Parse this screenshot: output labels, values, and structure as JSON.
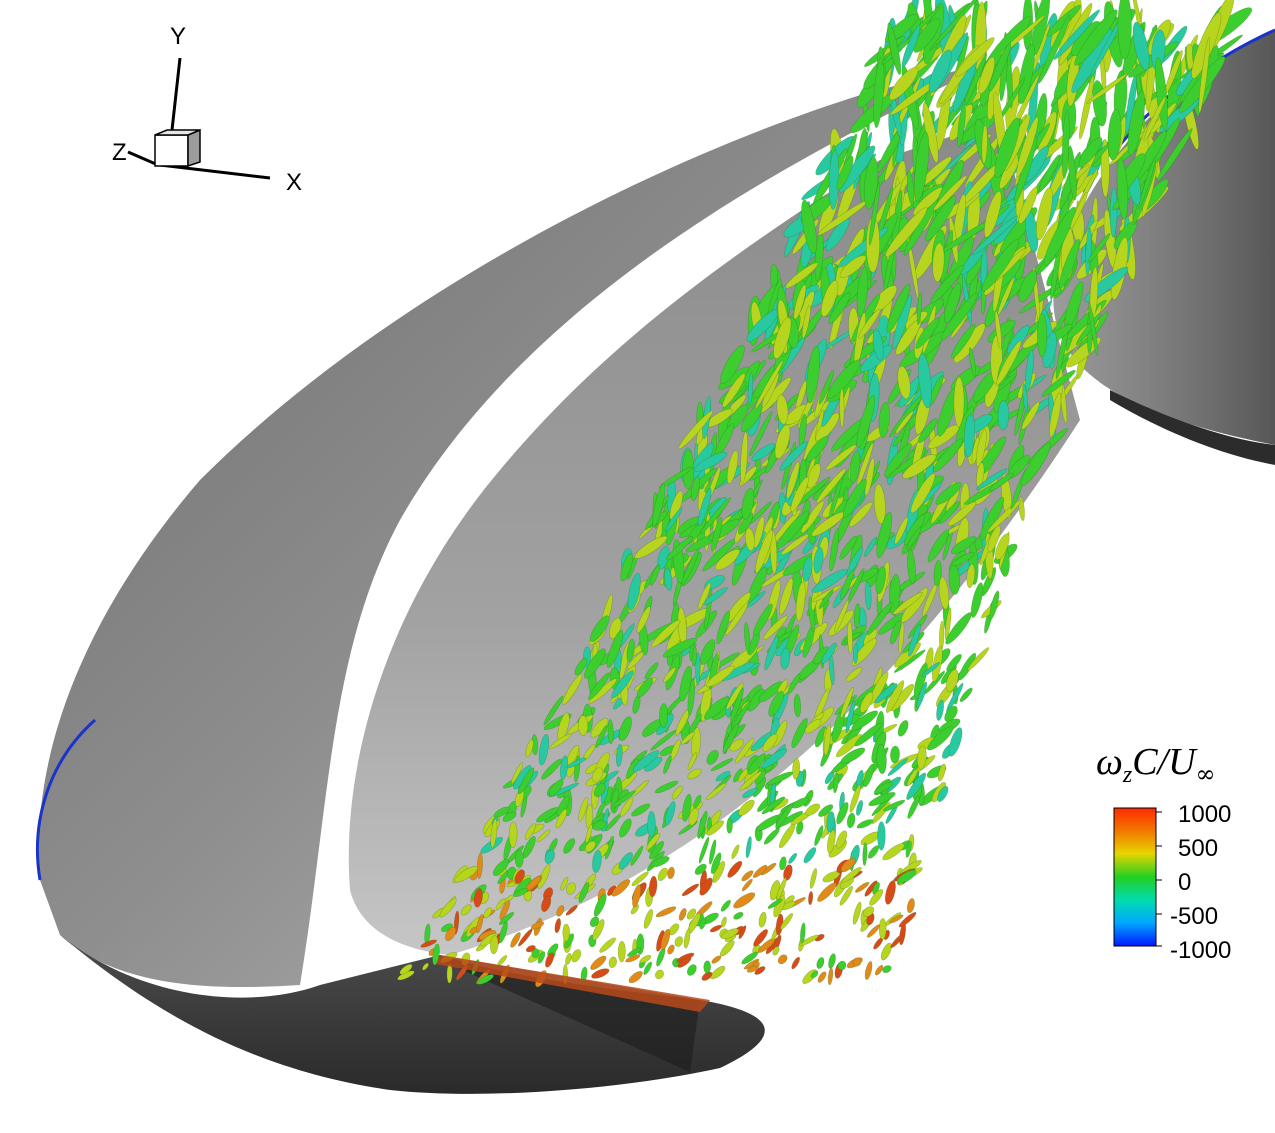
{
  "axes": {
    "x_label": "X",
    "y_label": "Y",
    "z_label": "Z"
  },
  "legend": {
    "title_omega": "ω",
    "title_sub": "z",
    "title_rest": "C/U",
    "title_inf": "∞",
    "ticks": [
      "1000",
      "500",
      "0",
      "-500",
      "-1000"
    ],
    "colors": [
      "#ff2a00",
      "#f7b800",
      "#9acd00",
      "#18d818",
      "#00e0b0",
      "#00a8ff",
      "#0020ff"
    ]
  },
  "palette": {
    "surface_light": "#b4b4b4",
    "surface_mid": "#8c8c8c",
    "surface_dark": "#3a3a3a",
    "vortex_green": "#3ccd2e",
    "vortex_yellow": "#b7d41e",
    "vortex_orange": "#e08a1a",
    "vortex_cyan": "#28c8a0"
  }
}
